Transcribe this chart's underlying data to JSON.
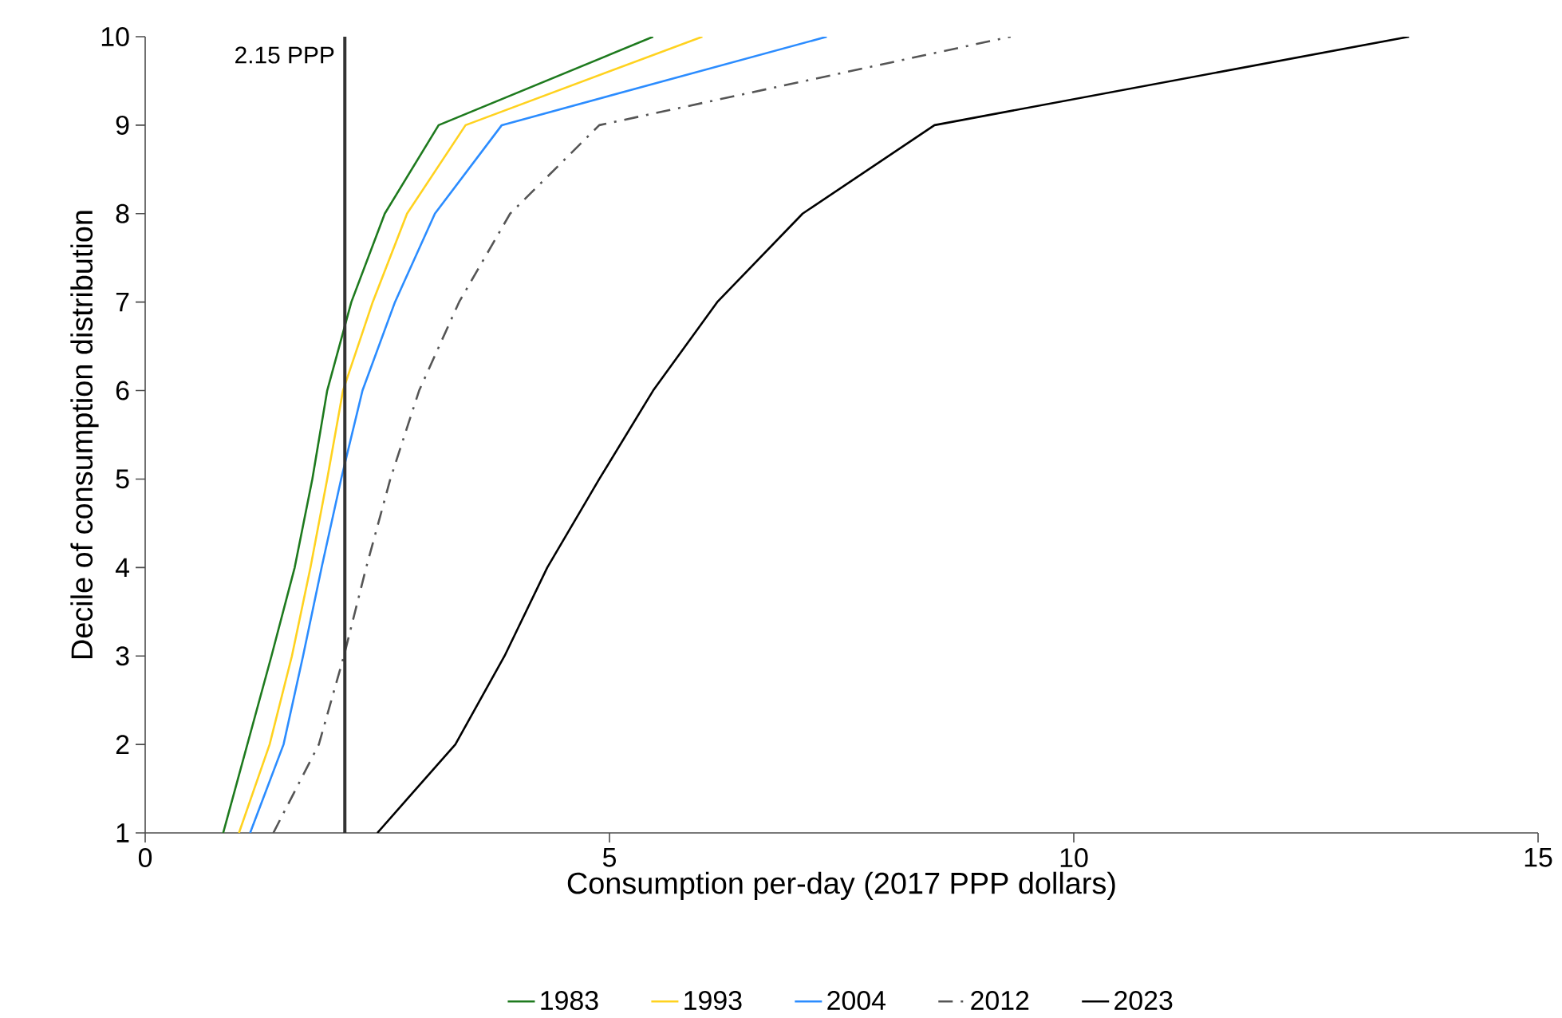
{
  "chart_data": {
    "type": "line",
    "xlabel": "Consumption per-day (2017 PPP dollars)",
    "ylabel": "Decile of consumption distribution",
    "xlim": [
      0,
      15
    ],
    "xticks": [
      0,
      5,
      10,
      15
    ],
    "ylim": [
      1,
      10
    ],
    "yticks": [
      1,
      2,
      3,
      4,
      5,
      6,
      7,
      8,
      9,
      10
    ],
    "grid": false,
    "legend": "bottom",
    "marker": "none",
    "ref_lines": [
      {
        "axis": "x",
        "value": 2.15,
        "label": "2.15 PPP",
        "color": "#333333",
        "line_style": "solid"
      }
    ],
    "series": [
      {
        "name": "1983",
        "color": "#1e7a1e",
        "line_style": "solid",
        "x": [
          0.84,
          1.1,
          1.36,
          1.61,
          1.8,
          1.96,
          2.22,
          2.58,
          3.16,
          5.47
        ],
        "values": [
          1,
          2,
          3,
          4,
          5,
          6,
          7,
          8,
          9,
          10
        ]
      },
      {
        "name": "1993",
        "color": "#ffd21f",
        "line_style": "solid",
        "x": [
          1.01,
          1.34,
          1.58,
          1.78,
          1.96,
          2.13,
          2.45,
          2.82,
          3.45,
          6.0
        ],
        "values": [
          1,
          2,
          3,
          4,
          5,
          6,
          7,
          8,
          9,
          10
        ]
      },
      {
        "name": "2004",
        "color": "#2b8cff",
        "line_style": "solid",
        "x": [
          1.13,
          1.49,
          1.7,
          1.9,
          2.11,
          2.34,
          2.69,
          3.12,
          3.84,
          7.34
        ],
        "values": [
          1,
          2,
          3,
          4,
          5,
          6,
          7,
          8,
          9,
          10
        ]
      },
      {
        "name": "2012",
        "color": "#555555",
        "line_style": "dashed",
        "x": [
          1.38,
          1.87,
          2.14,
          2.38,
          2.64,
          2.95,
          3.38,
          3.93,
          4.89,
          9.32
        ],
        "values": [
          1,
          2,
          3,
          4,
          5,
          6,
          7,
          8,
          9,
          10
        ]
      },
      {
        "name": "2023",
        "color": "#000000",
        "line_style": "solid",
        "x": [
          2.5,
          3.34,
          3.87,
          4.33,
          4.89,
          5.47,
          6.16,
          7.08,
          8.5,
          13.61
        ],
        "values": [
          1,
          2,
          3,
          4,
          5,
          6,
          7,
          8,
          9,
          10
        ]
      }
    ]
  }
}
